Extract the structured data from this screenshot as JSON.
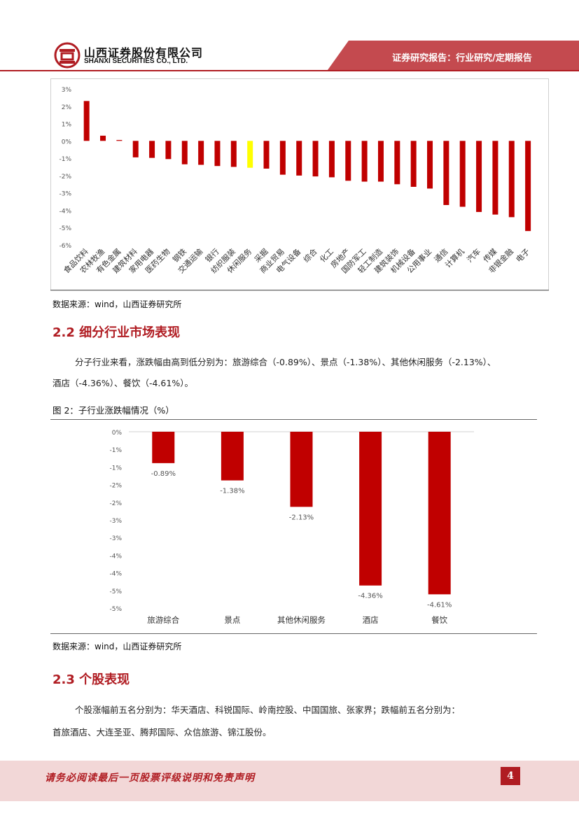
{
  "header": {
    "company_cn": "山西证券股份有限公司",
    "company_en": "SHANXI SECURITIES CO., LTD.",
    "report_type": "证券研究报告：行业研究/定期报告",
    "brand_color": "#b01c22"
  },
  "figure1": {
    "source": "数据来源：wind，山西证券研究所"
  },
  "section_2_2": {
    "heading": "2.2 细分行业市场表现",
    "paragraph_line1": "分子行业来看，涨跌幅由高到低分别为：旅游综合（-0.89%）、景点（-1.38%）、其他休闲服务（-2.13%）、",
    "paragraph_line2": "酒店（-4.36%）、餐饮（-4.61%）。"
  },
  "figure2": {
    "caption": "图 2：子行业涨跌幅情况（%）",
    "source": "数据来源：wind，山西证券研究所"
  },
  "section_2_3": {
    "heading": "2.3 个股表现",
    "paragraph_line1": "个股涨幅前五名分别为：华天酒店、科锐国际、岭南控股、中国国旅、张家界；跌幅前五名分别为：",
    "paragraph_line2": "首旅酒店、大连圣亚、腾邦国际、众信旅游、锦江股份。"
  },
  "footer": {
    "disclaimer": "请务必阅读最后一页股票评级说明和免责声明",
    "page_number": "4"
  },
  "chart_data": [
    {
      "type": "bar",
      "title": "",
      "categories": [
        "食品饮料",
        "农林牧渔",
        "有色金属",
        "建筑材料",
        "家用电器",
        "医药生物",
        "钢铁",
        "交通运输",
        "银行",
        "纺织服装",
        "休闲服务",
        "采掘",
        "商业贸易",
        "电气设备",
        "综合",
        "化工",
        "房地产",
        "国防军工",
        "轻工制造",
        "建筑装饰",
        "机械设备",
        "公用事业",
        "通信",
        "计算机",
        "汽车",
        "传媒",
        "非银金融",
        "电子"
      ],
      "values": [
        2.3,
        0.3,
        0.05,
        -0.95,
        -0.98,
        -1.05,
        -1.35,
        -1.38,
        -1.45,
        -1.5,
        -1.55,
        -1.6,
        -1.95,
        -2.0,
        -2.05,
        -2.1,
        -2.3,
        -2.35,
        -2.35,
        -2.5,
        -2.65,
        -2.75,
        -3.7,
        -3.8,
        -4.1,
        -4.25,
        -4.4,
        -5.2
      ],
      "highlight_category": "休闲服务",
      "bar_color": "#c00000",
      "highlight_color": "#ffff00",
      "yticks": [
        "3%",
        "2%",
        "1%",
        "0%",
        "-1%",
        "-2%",
        "-3%",
        "-4%",
        "-5%",
        "-6%"
      ],
      "ylim": [
        -6,
        3
      ],
      "xlabel": "",
      "ylabel": ""
    },
    {
      "type": "bar",
      "title": "子行业涨跌幅情况（%）",
      "categories": [
        "旅游综合",
        "景点",
        "其他休闲服务",
        "酒店",
        "餐饮"
      ],
      "values": [
        -0.89,
        -1.38,
        -2.13,
        -4.36,
        -4.61
      ],
      "data_labels": [
        "-0.89%",
        "-1.38%",
        "-2.13%",
        "-4.36%",
        "-4.61%"
      ],
      "bar_color": "#c00000",
      "yticks": [
        "0%",
        "-1%",
        "-1%",
        "-2%",
        "-2%",
        "-3%",
        "-3%",
        "-4%",
        "-4%",
        "-5%",
        "-5%"
      ],
      "ylim": [
        -5,
        0
      ],
      "xlabel": "",
      "ylabel": ""
    }
  ]
}
